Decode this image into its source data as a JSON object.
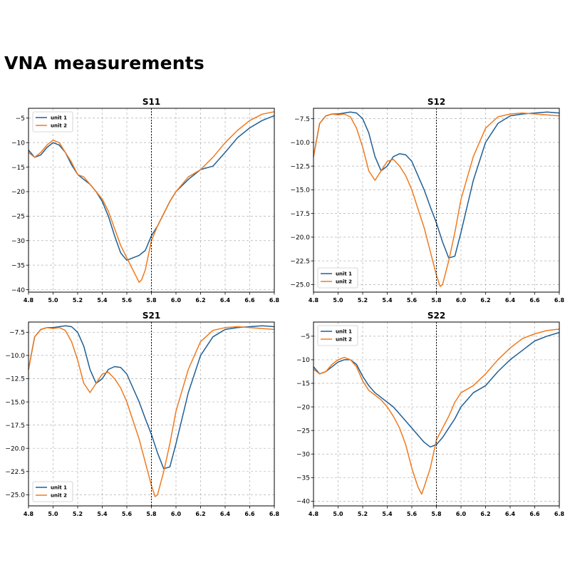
{
  "page_title": "VNA measurements",
  "colors": {
    "unit_1": "#1f5f95",
    "unit_2": "#f07a1e",
    "marker": "#000000",
    "grid": "#b0b0b0"
  },
  "chart_data": [
    {
      "type": "line",
      "title": "S11",
      "xlabel": "",
      "ylabel": "",
      "xlim": [
        4.8,
        6.8
      ],
      "ylim": [
        -40.5,
        -3
      ],
      "xticks": [
        "4.8",
        "5.0",
        "5.2",
        "5.4",
        "5.6",
        "5.8",
        "6.0",
        "6.2",
        "6.4",
        "6.6",
        "6.8"
      ],
      "yticks": [
        -5,
        -10,
        -15,
        -20,
        -25,
        -30,
        -35,
        -40
      ],
      "ytick_labels": [
        "−5",
        "−10",
        "−15",
        "−20",
        "−25",
        "−30",
        "−35",
        "−40"
      ],
      "grid": true,
      "legend_position": "upper-left",
      "marker_x": 5.8,
      "series": [
        {
          "name": "unit 1",
          "x": [
            4.8,
            4.85,
            4.9,
            4.95,
            5.0,
            5.05,
            5.1,
            5.15,
            5.2,
            5.25,
            5.3,
            5.35,
            5.4,
            5.45,
            5.5,
            5.55,
            5.6,
            5.65,
            5.7,
            5.75,
            5.8,
            5.85,
            5.9,
            5.95,
            6.0,
            6.1,
            6.2,
            6.3,
            6.4,
            6.5,
            6.6,
            6.7,
            6.8
          ],
          "y": [
            -11.5,
            -13,
            -12.5,
            -11,
            -10,
            -10.5,
            -12,
            -14.5,
            -16.5,
            -17.5,
            -18.5,
            -20,
            -22,
            -25,
            -29,
            -32.5,
            -34,
            -33.5,
            -33,
            -32,
            -29,
            -27,
            -24.5,
            -22,
            -20,
            -17.5,
            -15.5,
            -14.8,
            -12,
            -9,
            -7,
            -5.5,
            -4.5
          ]
        },
        {
          "name": "unit 2",
          "x": [
            4.8,
            4.85,
            4.9,
            4.95,
            5.0,
            5.05,
            5.1,
            5.15,
            5.2,
            5.25,
            5.3,
            5.35,
            5.4,
            5.45,
            5.5,
            5.55,
            5.6,
            5.65,
            5.7,
            5.72,
            5.75,
            5.8,
            5.85,
            5.9,
            5.95,
            6.0,
            6.1,
            6.2,
            6.3,
            6.4,
            6.5,
            6.6,
            6.7,
            6.8
          ],
          "y": [
            -12,
            -13,
            -12,
            -10.5,
            -9.5,
            -10,
            -12,
            -14,
            -16.5,
            -17,
            -18.5,
            -20,
            -21.5,
            -24,
            -27.5,
            -31,
            -33.5,
            -36,
            -38.5,
            -38,
            -36,
            -30,
            -27,
            -24.5,
            -22,
            -20,
            -17,
            -15.5,
            -13,
            -10,
            -7.5,
            -5.5,
            -4.2,
            -3.7
          ]
        }
      ]
    },
    {
      "type": "line",
      "title": "S12",
      "xlabel": "",
      "ylabel": "",
      "xlim": [
        4.8,
        6.8
      ],
      "ylim": [
        -25.8,
        -6.4
      ],
      "xticks": [
        "4.8",
        "5.0",
        "5.2",
        "5.4",
        "5.6",
        "5.8",
        "6.0",
        "6.2",
        "6.4",
        "6.6",
        "6.8"
      ],
      "yticks": [
        -7.5,
        -10,
        -12.5,
        -15,
        -17.5,
        -20,
        -22.5,
        -25
      ],
      "ytick_labels": [
        "−7.5",
        "−10.0",
        "−12.5",
        "−15.0",
        "−17.5",
        "−20.0",
        "−22.5",
        "−25.0"
      ],
      "grid": true,
      "legend_position": "lower-left",
      "marker_x": 5.8,
      "series": [
        {
          "name": "unit 1",
          "x": [
            4.8,
            4.85,
            4.9,
            4.95,
            5.0,
            5.05,
            5.1,
            5.15,
            5.2,
            5.25,
            5.3,
            5.35,
            5.4,
            5.45,
            5.5,
            5.55,
            5.6,
            5.65,
            5.7,
            5.75,
            5.8,
            5.85,
            5.9,
            5.95,
            6.0,
            6.1,
            6.2,
            6.3,
            6.4,
            6.5,
            6.6,
            6.7,
            6.8
          ],
          "y": [
            -11.5,
            -8,
            -7.2,
            -7,
            -7,
            -6.9,
            -6.8,
            -6.9,
            -7.5,
            -9,
            -11.5,
            -13,
            -12.5,
            -11.5,
            -11.2,
            -11.3,
            -12,
            -13.5,
            -15,
            -16.8,
            -18.5,
            -20.5,
            -22.2,
            -22,
            -19.5,
            -14,
            -10,
            -8,
            -7.2,
            -7,
            -6.9,
            -6.8,
            -6.9
          ]
        },
        {
          "name": "unit 2",
          "x": [
            4.8,
            4.85,
            4.9,
            4.95,
            5.0,
            5.05,
            5.1,
            5.15,
            5.2,
            5.25,
            5.3,
            5.35,
            5.4,
            5.45,
            5.5,
            5.55,
            5.6,
            5.65,
            5.7,
            5.75,
            5.8,
            5.83,
            5.85,
            5.9,
            5.95,
            6.0,
            6.1,
            6.2,
            6.3,
            6.4,
            6.5,
            6.6,
            6.7,
            6.8
          ],
          "y": [
            -11.5,
            -8,
            -7.2,
            -7,
            -7.1,
            -7,
            -7.3,
            -8.5,
            -10.5,
            -13,
            -14,
            -13,
            -12,
            -11.8,
            -12.5,
            -13.5,
            -15,
            -17,
            -19,
            -21.5,
            -24,
            -25.2,
            -25,
            -22.5,
            -19.5,
            -16,
            -11.5,
            -8.5,
            -7.3,
            -7,
            -6.9,
            -7,
            -7.1,
            -7.2
          ]
        }
      ]
    },
    {
      "type": "line",
      "title": "S21",
      "xlabel": "",
      "ylabel": "",
      "xlim": [
        4.8,
        6.8
      ],
      "ylim": [
        -26.2,
        -6.4
      ],
      "xticks": [
        "4.8",
        "5.0",
        "5.2",
        "5.4",
        "5.6",
        "5.8",
        "6.0",
        "6.2",
        "6.4",
        "6.6",
        "6.8"
      ],
      "yticks": [
        -7.5,
        -10,
        -12.5,
        -15,
        -17.5,
        -20,
        -22.5,
        -25
      ],
      "ytick_labels": [
        "−7.5",
        "−10.0",
        "−12.5",
        "−15.0",
        "−17.5",
        "−20.0",
        "−22.5",
        "−25.0"
      ],
      "grid": true,
      "legend_position": "lower-left",
      "marker_x": 5.8,
      "series": [
        {
          "name": "unit 1",
          "x": [
            4.8,
            4.85,
            4.9,
            4.95,
            5.0,
            5.05,
            5.1,
            5.15,
            5.2,
            5.25,
            5.3,
            5.35,
            5.4,
            5.45,
            5.5,
            5.55,
            5.6,
            5.65,
            5.7,
            5.75,
            5.8,
            5.85,
            5.9,
            5.95,
            6.0,
            6.1,
            6.2,
            6.3,
            6.4,
            6.5,
            6.6,
            6.7,
            6.8
          ],
          "y": [
            -11.5,
            -8,
            -7.2,
            -7,
            -7,
            -6.9,
            -6.8,
            -6.9,
            -7.5,
            -9,
            -11.5,
            -13,
            -12.5,
            -11.5,
            -11.2,
            -11.3,
            -12,
            -13.5,
            -15,
            -16.8,
            -18.5,
            -20.5,
            -22.2,
            -22,
            -19.5,
            -14,
            -10,
            -8,
            -7.2,
            -7,
            -6.9,
            -6.8,
            -6.9
          ]
        },
        {
          "name": "unit 2",
          "x": [
            4.8,
            4.85,
            4.9,
            4.95,
            5.0,
            5.05,
            5.1,
            5.15,
            5.2,
            5.25,
            5.3,
            5.35,
            5.4,
            5.45,
            5.5,
            5.55,
            5.6,
            5.65,
            5.7,
            5.75,
            5.8,
            5.83,
            5.85,
            5.9,
            5.95,
            6.0,
            6.1,
            6.2,
            6.3,
            6.4,
            6.5,
            6.6,
            6.7,
            6.8
          ],
          "y": [
            -11.5,
            -8,
            -7.2,
            -7,
            -7.1,
            -7,
            -7.3,
            -8.5,
            -10.5,
            -13,
            -14,
            -13,
            -12,
            -11.8,
            -12.5,
            -13.5,
            -15,
            -17,
            -19,
            -21.5,
            -24,
            -25.2,
            -25,
            -22.5,
            -19.5,
            -16,
            -11.5,
            -8.5,
            -7.3,
            -7,
            -6.9,
            -7,
            -7.1,
            -7.2
          ]
        }
      ]
    },
    {
      "type": "line",
      "title": "S22",
      "xlabel": "",
      "ylabel": "",
      "xlim": [
        4.8,
        6.8
      ],
      "ylim": [
        -41,
        -2
      ],
      "xticks": [
        "4.8",
        "5.0",
        "5.2",
        "5.4",
        "5.6",
        "5.8",
        "6.0",
        "6.2",
        "6.4",
        "6.6",
        "6.8"
      ],
      "yticks": [
        -5,
        -10,
        -15,
        -20,
        -25,
        -30,
        -35,
        -40
      ],
      "ytick_labels": [
        "−5",
        "−10",
        "−15",
        "−20",
        "−25",
        "−30",
        "−35",
        "−40"
      ],
      "grid": true,
      "legend_position": "upper-left",
      "marker_x": 5.8,
      "series": [
        {
          "name": "unit 1",
          "x": [
            4.8,
            4.85,
            4.9,
            4.95,
            5.0,
            5.05,
            5.1,
            5.15,
            5.2,
            5.25,
            5.3,
            5.35,
            5.4,
            5.45,
            5.5,
            5.55,
            5.6,
            5.65,
            5.7,
            5.75,
            5.8,
            5.85,
            5.9,
            5.95,
            6.0,
            6.1,
            6.2,
            6.3,
            6.4,
            6.5,
            6.6,
            6.7,
            6.8
          ],
          "y": [
            -11.5,
            -13,
            -12.5,
            -11.5,
            -10.5,
            -10,
            -10,
            -11,
            -13.5,
            -15.5,
            -17,
            -18,
            -19,
            -20,
            -21.5,
            -23,
            -24.5,
            -26,
            -27.5,
            -28.5,
            -28,
            -26.5,
            -24.5,
            -22.5,
            -20,
            -17,
            -15.5,
            -12.5,
            -10,
            -8,
            -6,
            -5,
            -4.2
          ]
        },
        {
          "name": "unit 2",
          "x": [
            4.8,
            4.85,
            4.9,
            4.95,
            5.0,
            5.05,
            5.1,
            5.15,
            5.2,
            5.25,
            5.3,
            5.35,
            5.4,
            5.45,
            5.5,
            5.55,
            5.6,
            5.65,
            5.68,
            5.7,
            5.75,
            5.8,
            5.85,
            5.9,
            5.95,
            6.0,
            6.1,
            6.2,
            6.3,
            6.4,
            6.5,
            6.6,
            6.7,
            6.8
          ],
          "y": [
            -12,
            -13,
            -12.5,
            -11,
            -10,
            -9.5,
            -10,
            -11.5,
            -14.5,
            -16.5,
            -17.5,
            -18.5,
            -20,
            -22,
            -24.5,
            -28,
            -33,
            -37,
            -38.5,
            -37,
            -33,
            -27,
            -24.5,
            -22,
            -19,
            -17,
            -15.5,
            -13,
            -10,
            -7.5,
            -5.5,
            -4.5,
            -3.8,
            -3.5
          ]
        }
      ]
    }
  ]
}
